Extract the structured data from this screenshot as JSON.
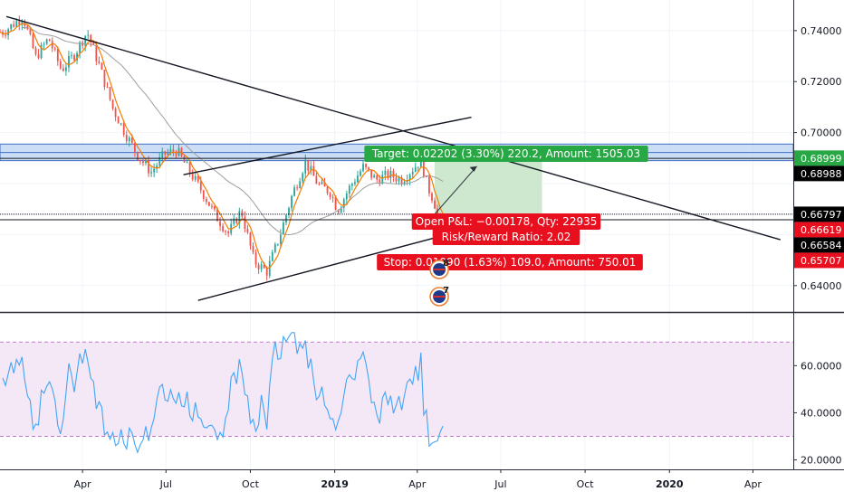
{
  "chart_data": [
    {
      "type": "candlestick",
      "panel": "price",
      "ylim": [
        0.63,
        0.752
      ],
      "y_ticks": [
        "0.74000",
        "0.72000",
        "0.70000",
        "0.64000"
      ],
      "y_tick_values": [
        0.74,
        0.72,
        0.7,
        0.64
      ],
      "x_ticks": [
        "Apr",
        "Jul",
        "Oct",
        "2019",
        "Apr",
        "Jul",
        "Oct",
        "2020",
        "Apr"
      ],
      "x_tick_dates": [
        "2018-04-01",
        "2018-07-01",
        "2018-10-01",
        "2019-01-01",
        "2019-04-01",
        "2019-07-01",
        "2019-10-01",
        "2020-01-01",
        "2020-04-01"
      ],
      "colors": {
        "up": "#26a69a",
        "down": "#ef5350",
        "ma_fast": "#f57c00",
        "ma_slow": "#9e9e9e",
        "rsi": "#42a5f5",
        "target_zone": "#c8e6c9",
        "stop_zone": "#ffcdd2"
      },
      "price_labels": [
        {
          "text": "0.68999",
          "value": 0.68999,
          "color": "#27a844"
        },
        {
          "text": "0.68988",
          "value": 0.68988,
          "color": "#000000"
        },
        {
          "text": "0.66797",
          "value": 0.66797,
          "color": "#000000"
        },
        {
          "text": "0.66619",
          "value": 0.66619,
          "color": "#e8101e"
        },
        {
          "text": "0.66584",
          "value": 0.66584,
          "color": "#000000"
        },
        {
          "text": "0.65707",
          "value": 0.65707,
          "color": "#e8101e"
        }
      ],
      "resistance_zone": {
        "from": 0.689,
        "to": 0.6955
      },
      "position": {
        "entry": 0.66797,
        "target": 0.68999,
        "stop": 0.65707,
        "start_date": "2019-04-20",
        "end_date": "2019-08-15",
        "target_label": "Target: 0.02202 (3.30%) 220.2, Amount: 1505.03",
        "pnl_label": "Open P&L: −0.00178, Qty: 22935",
        "rr_label": "Risk/Reward Ratio: 2.02",
        "stop_label": "Stop: 0.01090 (1.63%) 109.0, Amount: 750.01",
        "colors": {
          "target": "#27a844",
          "stop": "#e8101e"
        }
      },
      "event_markers": [
        {
          "date": "2019-04-25",
          "count": "8",
          "flag": "us-flag"
        },
        {
          "date": "2019-04-25",
          "count": "7",
          "flag": "au-flag"
        }
      ],
      "trendlines": [
        {
          "from": [
            "2018-01-08",
            0.7455
          ],
          "to": [
            "2020-05-01",
            0.658
          ]
        },
        {
          "from": [
            "2018-07-20",
            0.6835
          ],
          "to": [
            "2019-05-30",
            0.706
          ]
        },
        {
          "from": [
            "2018-08-05",
            0.6342
          ],
          "to": [
            "2019-05-30",
            0.6625
          ]
        },
        {
          "from": [
            "2019-04-20",
            0.668
          ],
          "to": [
            "2019-06-05",
            0.6868
          ]
        }
      ]
    },
    {
      "type": "line",
      "panel": "rsi",
      "ylim": [
        16,
        82
      ],
      "y_ticks": [
        "60.0000",
        "40.0000",
        "20.0000"
      ],
      "y_tick_values": [
        60,
        40,
        20
      ],
      "band": [
        30,
        70
      ]
    }
  ]
}
